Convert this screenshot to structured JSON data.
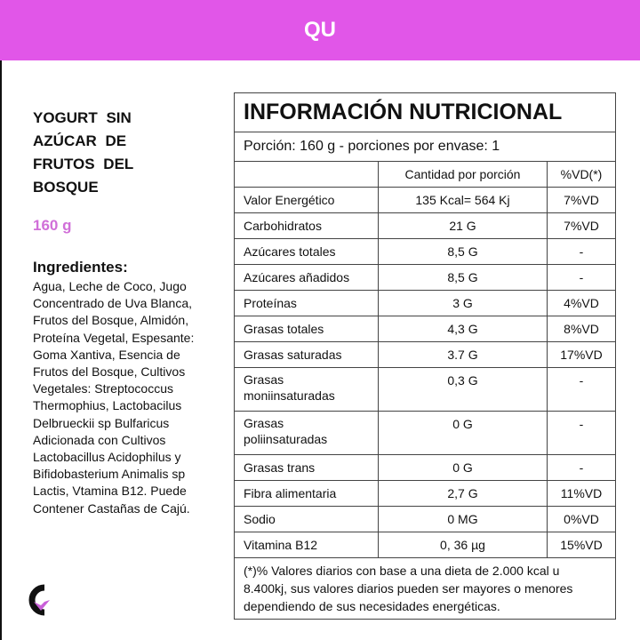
{
  "header": {
    "title": "QU",
    "color": "#e156e8"
  },
  "product": {
    "name": "YOGURT SIN AZÚCAR DE FRUTOS DEL BOSQUE",
    "weight": "160 g",
    "ingredients_label": "Ingredientes:",
    "ingredients": "Agua, Leche de Coco, Jugo Concentrado de Uva Blanca, Frutos del Bosque, Almidón, Proteína Vegetal, Espesante: Goma Xantiva, Esencia de Frutos del Bosque, Cultivos Vegetales: Streptococcus Thermophius, Lactobacilus Delbrueckii sp Bulfaricus Adicionada con Cultivos Lactobacillus Acidophilus y Bifidobasterium Animalis sp Lactis, Vtamina B12. Puede Contener Castañas de Cajú."
  },
  "nutrition": {
    "title": "INFORMACIÓN NUTRICIONAL",
    "portion": "Porción: 160 g - porciones por envase: 1",
    "col_amount": "Cantidad  por porción",
    "col_vd": "%VD(*)",
    "rows": [
      {
        "name": "Valor Energético",
        "amount": "135 Kcal= 564 Kj",
        "vd": "7%VD"
      },
      {
        "name": "Carbohidratos",
        "amount": "21 G",
        "vd": "7%VD"
      },
      {
        "name": "Azúcares totales",
        "amount": "8,5 G",
        "vd": "-"
      },
      {
        "name": "Azúcares añadidos",
        "amount": "8,5 G",
        "vd": "-"
      },
      {
        "name": "Proteínas",
        "amount": "3 G",
        "vd": "4%VD"
      },
      {
        "name": "Grasas totales",
        "amount": "4,3 G",
        "vd": "8%VD"
      },
      {
        "name": "Grasas saturadas",
        "amount": "3.7 G",
        "vd": "17%VD"
      },
      {
        "name": "Grasas moniinsaturadas",
        "amount": "0,3 G",
        "vd": "-"
      },
      {
        "name": "Grasas poliinsaturadas",
        "amount": "0 G",
        "vd": "-"
      },
      {
        "name": "Grasas trans",
        "amount": "0 G",
        "vd": "-"
      },
      {
        "name": "Fibra alimentaria",
        "amount": "2,7 G",
        "vd": "11%VD"
      },
      {
        "name": "Sodio",
        "amount": "0 MG",
        "vd": "0%VD"
      },
      {
        "name": "Vitamina B12",
        "amount": "0, 36 µg",
        "vd": "15%VD"
      }
    ],
    "footnote": "(*)% Valores diarios con base a una dieta de 2.000 kcal u 8.400kj, sus valores diarios pueden ser mayores o menores dependiendo de sus necesidades energéticas."
  }
}
